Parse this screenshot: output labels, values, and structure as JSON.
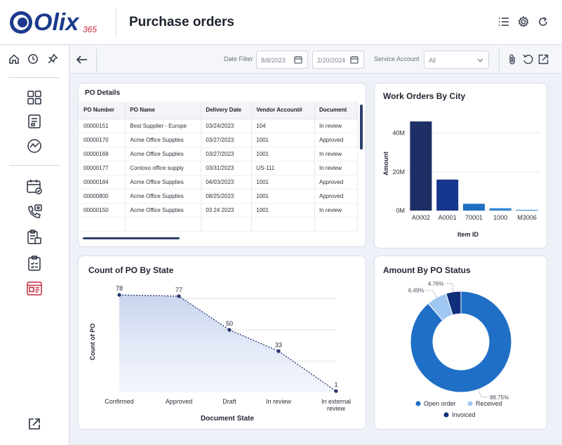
{
  "app": {
    "logo_text": "Olix",
    "logo_sub": "365",
    "title": "Purchase orders"
  },
  "header_icons": [
    "list-icon",
    "gear-icon",
    "refresh-icon"
  ],
  "sidebar": {
    "items": [
      "home-icon",
      "clock-icon",
      "pin-icon",
      "grid-icon",
      "report-icon",
      "analytics-icon",
      "calendar-icon",
      "phone-icon",
      "clipboard-icon",
      "checklist-icon",
      "dashboard-icon",
      "external-link-icon"
    ]
  },
  "toolbar": {
    "date_filter_label": "Date Filter",
    "date_from": "8/8/2023",
    "date_to": "2/20/2024",
    "service_account_label": "Service Account",
    "service_account_value": "All"
  },
  "po_details": {
    "title": "PO Details",
    "columns": [
      "PO Number",
      "PO Name",
      "Delivery Date",
      "Vendor Account#",
      "Document"
    ],
    "rows": [
      [
        "00000151",
        "Best Supplier - Europe",
        "03/24/2023",
        "104",
        "In review"
      ],
      [
        "00000170",
        "Acme Office Supplies",
        "03/27/2023",
        "1001",
        "Approved"
      ],
      [
        "00000169",
        "Acme Office Supplies",
        "03/27/2023",
        "1001",
        "In review"
      ],
      [
        "00000177",
        "Contoso office supply",
        "03/31/2023",
        "US-111",
        "In review"
      ],
      [
        "00000184",
        "Acme Office Supplies",
        "04/03/2023",
        "1001",
        "Approved"
      ],
      [
        "00000800",
        "Acme Office Supplies",
        "08/25/2023",
        "1001",
        "Approved"
      ],
      [
        "00000150",
        "Acme Office Supplies",
        "03 24 2023",
        "1001",
        "In review"
      ]
    ]
  },
  "chart_data": [
    {
      "type": "bar",
      "title": "Work Orders By City",
      "xlabel": "Item ID",
      "ylabel": "Amount",
      "categories": [
        "A0002",
        "A0001",
        "70001",
        "1000",
        "M3006"
      ],
      "values": [
        46,
        16,
        3.5,
        1.2,
        0.4
      ],
      "yticks": [
        "0M",
        "20M",
        "40M"
      ],
      "ylim": [
        0,
        50
      ],
      "colors": [
        "#1e2f66",
        "#16358c",
        "#1e6fc2",
        "#2f86d6",
        "#3f93dd"
      ]
    },
    {
      "type": "area",
      "title": "Count of PO By State",
      "xlabel": "Document State",
      "ylabel": "Count of PO",
      "categories": [
        "Confirmed",
        "Approved",
        "Draft",
        "In review",
        "In external review"
      ],
      "values": [
        78,
        77,
        50,
        33,
        1
      ],
      "ylim": [
        0,
        100
      ]
    },
    {
      "type": "pie",
      "title": "Amount By PO Status",
      "labels": [
        "Open order",
        "Received",
        "Invoiced"
      ],
      "values": [
        88.75,
        6.49,
        4.76
      ],
      "value_labels": [
        "88.75%",
        "6.49%",
        "4.76%"
      ],
      "colors": [
        "#1f6fc6",
        "#9fc7f2",
        "#0f2f7a"
      ],
      "legend": "bottom"
    }
  ]
}
